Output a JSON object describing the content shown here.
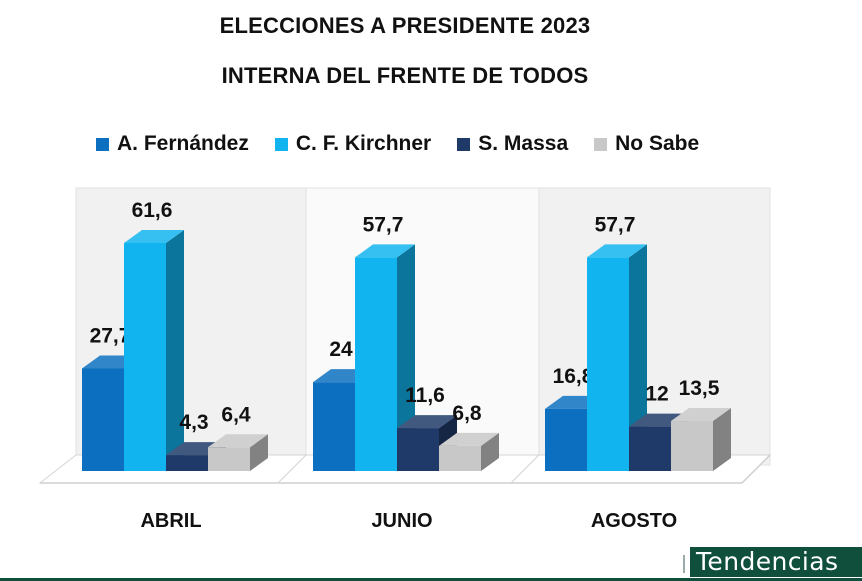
{
  "chart_data": {
    "type": "bar",
    "title": "ELECCIONES A PRESIDENTE 2023",
    "subtitle": "INTERNA DEL FRENTE DE TODOS",
    "categories": [
      "ABRIL",
      "JUNIO",
      "AGOSTO"
    ],
    "series": [
      {
        "name": "A. Fernández",
        "color": "#0d6fc0",
        "values": [
          27.7,
          24,
          16.8
        ],
        "labels": [
          "27,7",
          "24",
          "16,8"
        ]
      },
      {
        "name": "C. F. Kirchner",
        "color": "#12b4ef",
        "values": [
          61.6,
          57.7,
          57.7
        ],
        "labels": [
          "61,6",
          "57,7",
          "57,7"
        ]
      },
      {
        "name": "S. Massa",
        "color": "#1f3a68",
        "values": [
          4.3,
          11.6,
          12
        ],
        "labels": [
          "4,3",
          "11,6",
          "12"
        ]
      },
      {
        "name": "No Sabe",
        "color": "#c8c8c8",
        "values": [
          6.4,
          6.8,
          13.5
        ],
        "labels": [
          "6,4",
          "6,8",
          "13,5"
        ]
      }
    ],
    "ylim": [
      0,
      70
    ],
    "grid": false,
    "legend": "top"
  },
  "brand": {
    "text": "Tendencias"
  }
}
